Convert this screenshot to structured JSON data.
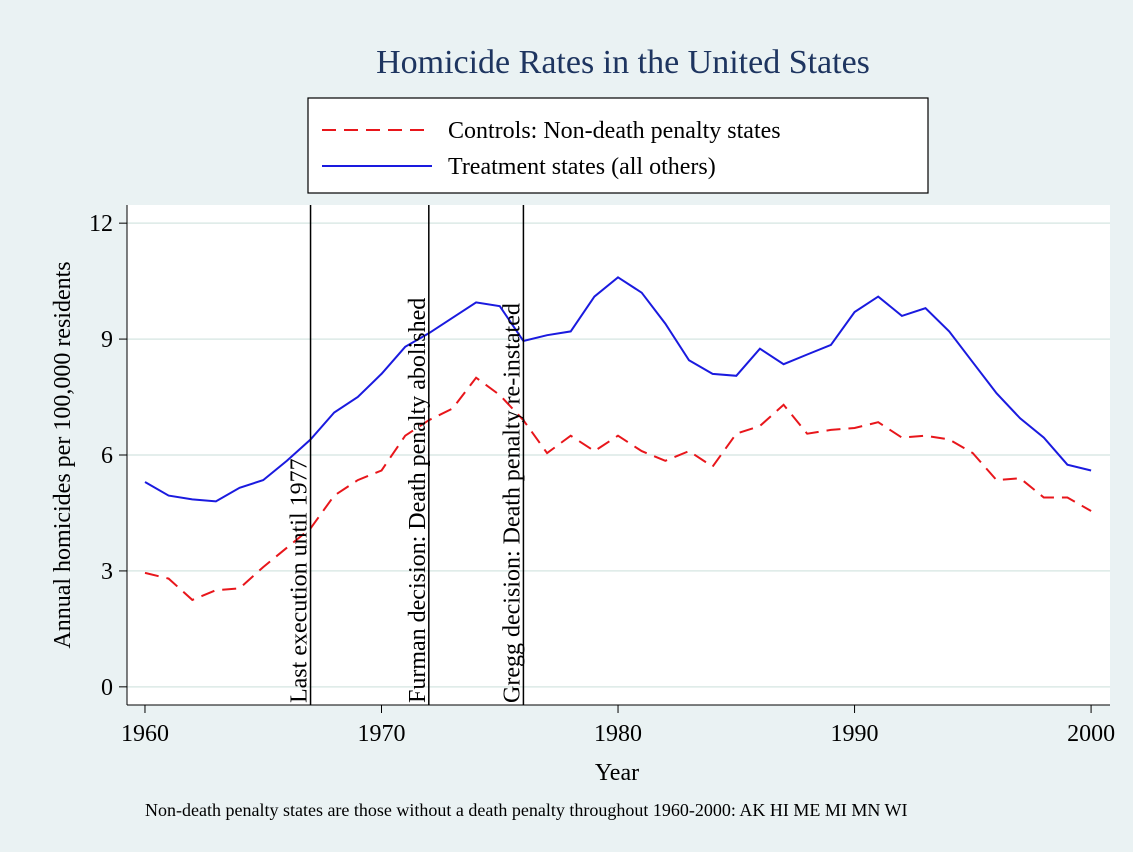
{
  "chart_data": {
    "type": "line",
    "title": "Homicide Rates in the United States",
    "x_label": "Year",
    "y_label": "Annual homicides per 100,000 residents",
    "note": "Non-death penalty states are those without a death penalty throughout 1960-2000: AK HI ME MI MN WI",
    "x": [
      1960,
      1961,
      1962,
      1963,
      1964,
      1965,
      1966,
      1967,
      1968,
      1969,
      1970,
      1971,
      1972,
      1973,
      1974,
      1975,
      1976,
      1977,
      1978,
      1979,
      1980,
      1981,
      1982,
      1983,
      1984,
      1985,
      1986,
      1987,
      1988,
      1989,
      1990,
      1991,
      1992,
      1993,
      1994,
      1995,
      1996,
      1997,
      1998,
      1999,
      2000
    ],
    "series": [
      {
        "name": "Controls: Non-death penalty states",
        "color": "#e8161b",
        "dash": "dashed",
        "values": [
          2.95,
          2.8,
          2.25,
          2.5,
          2.55,
          3.1,
          3.6,
          4.1,
          4.95,
          5.35,
          5.6,
          6.5,
          6.9,
          7.2,
          8.0,
          7.55,
          6.9,
          6.05,
          6.5,
          6.1,
          6.5,
          6.1,
          5.85,
          6.1,
          5.7,
          6.55,
          6.75,
          7.3,
          6.55,
          6.65,
          6.7,
          6.85,
          6.45,
          6.5,
          6.4,
          6.05,
          5.35,
          5.4,
          4.9,
          4.9,
          4.55
        ]
      },
      {
        "name": "Treatment states (all others)",
        "color": "#1a1adf",
        "dash": "solid",
        "values": [
          5.3,
          4.95,
          4.85,
          4.8,
          5.15,
          5.35,
          5.85,
          6.4,
          7.1,
          7.5,
          8.1,
          8.8,
          9.15,
          9.55,
          9.95,
          9.85,
          8.95,
          9.1,
          9.2,
          10.1,
          10.6,
          10.2,
          9.4,
          8.45,
          8.1,
          8.05,
          8.75,
          8.35,
          8.6,
          8.85,
          9.7,
          10.1,
          9.6,
          9.8,
          9.2,
          8.4,
          7.6,
          6.95,
          6.45,
          5.75,
          5.6
        ]
      }
    ],
    "events": [
      {
        "x": 1967,
        "label": "Last execution until 1977"
      },
      {
        "x": 1972,
        "label": "Furman decision: Death penalty abolished"
      },
      {
        "x": 1976,
        "label": "Gregg decision: Death penalty re-instated"
      }
    ],
    "xlim": [
      1959.24,
      2000.8
    ],
    "ylim": [
      -0.47,
      12.47
    ],
    "xticks": [
      1960,
      1970,
      1980,
      1990,
      2000
    ],
    "yticks": [
      0,
      3,
      6,
      9,
      12
    ],
    "grid": true
  }
}
